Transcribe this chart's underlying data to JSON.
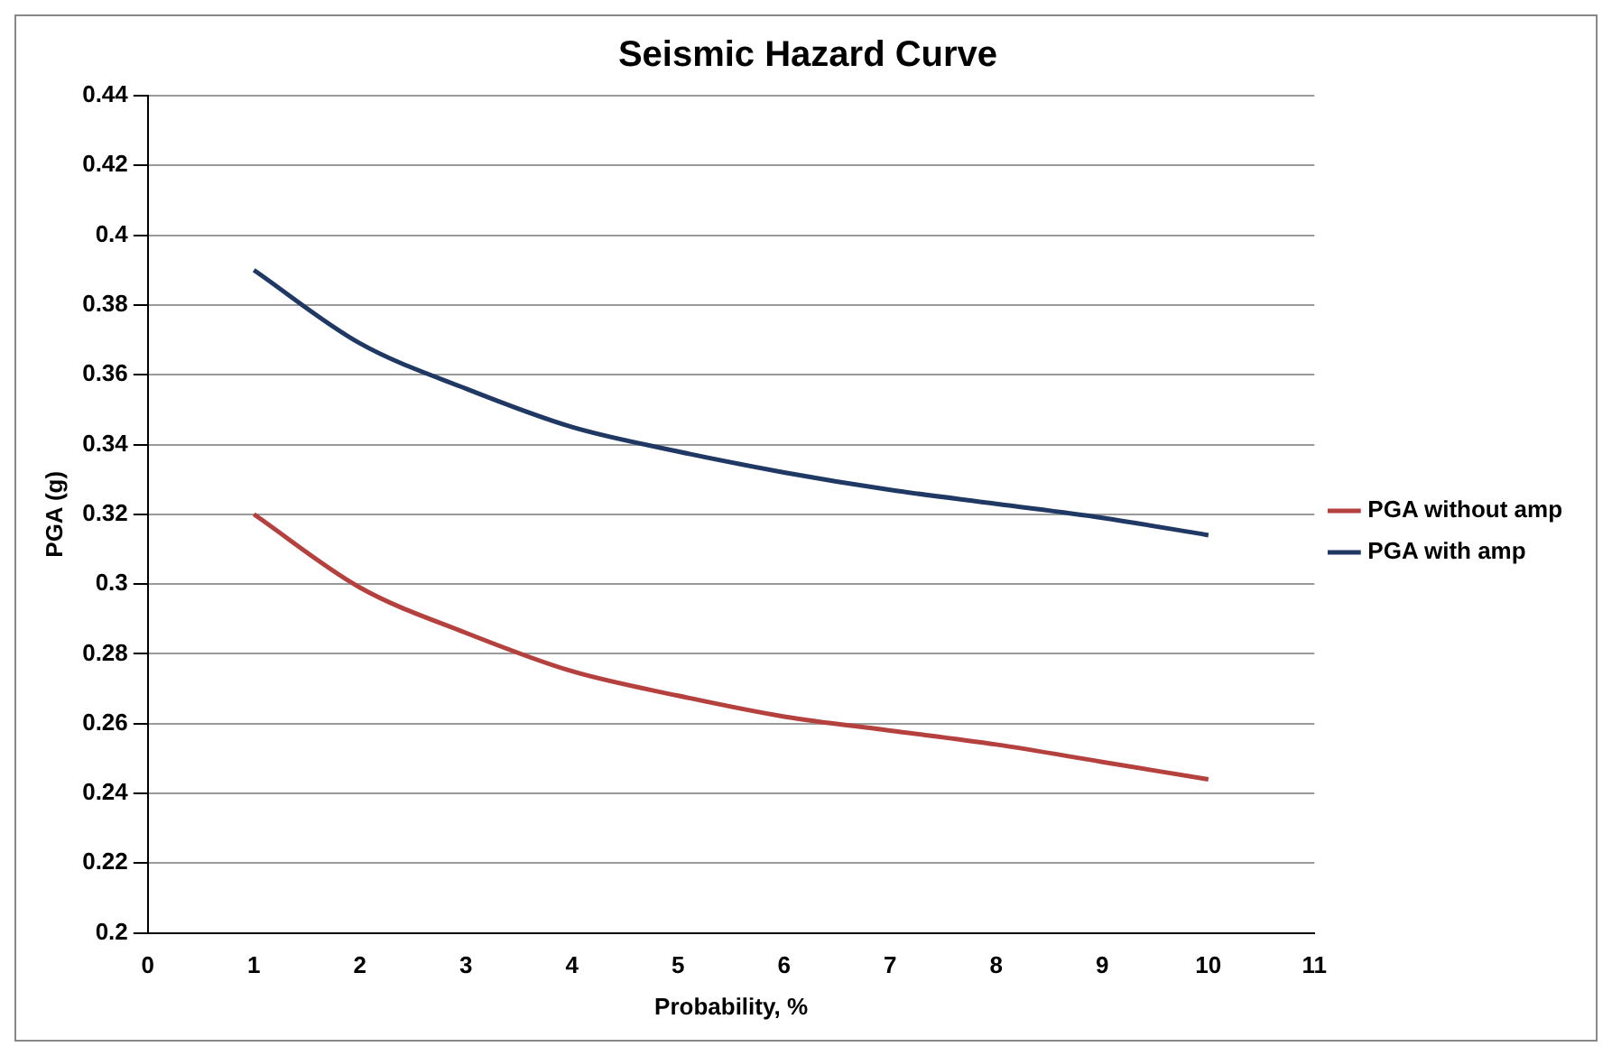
{
  "chart_data": {
    "type": "line",
    "title": "Seismic Hazard Curve",
    "xlabel": "Probability, %",
    "ylabel": "PGA (g)",
    "x": [
      1,
      2,
      3,
      4,
      5,
      6,
      7,
      8,
      9,
      10
    ],
    "series": [
      {
        "name": "PGA without amp",
        "color": "#b5413f",
        "values": [
          0.32,
          0.299,
          0.286,
          0.275,
          0.268,
          0.262,
          0.258,
          0.254,
          0.249,
          0.244
        ]
      },
      {
        "name": "PGA with amp",
        "color": "#1f3864",
        "values": [
          0.39,
          0.369,
          0.356,
          0.345,
          0.338,
          0.332,
          0.327,
          0.323,
          0.319,
          0.314
        ]
      }
    ],
    "xlim": [
      0,
      11
    ],
    "xticks": [
      0,
      1,
      2,
      3,
      4,
      5,
      6,
      7,
      8,
      9,
      10,
      11
    ],
    "ylim": [
      0.2,
      0.44
    ],
    "yticks": [
      0.2,
      0.22,
      0.24,
      0.26,
      0.28,
      0.3,
      0.32,
      0.34,
      0.36,
      0.38,
      0.4,
      0.42,
      0.44
    ],
    "grid": "y",
    "legend": "right",
    "marker": "none",
    "line_style": "solid"
  }
}
